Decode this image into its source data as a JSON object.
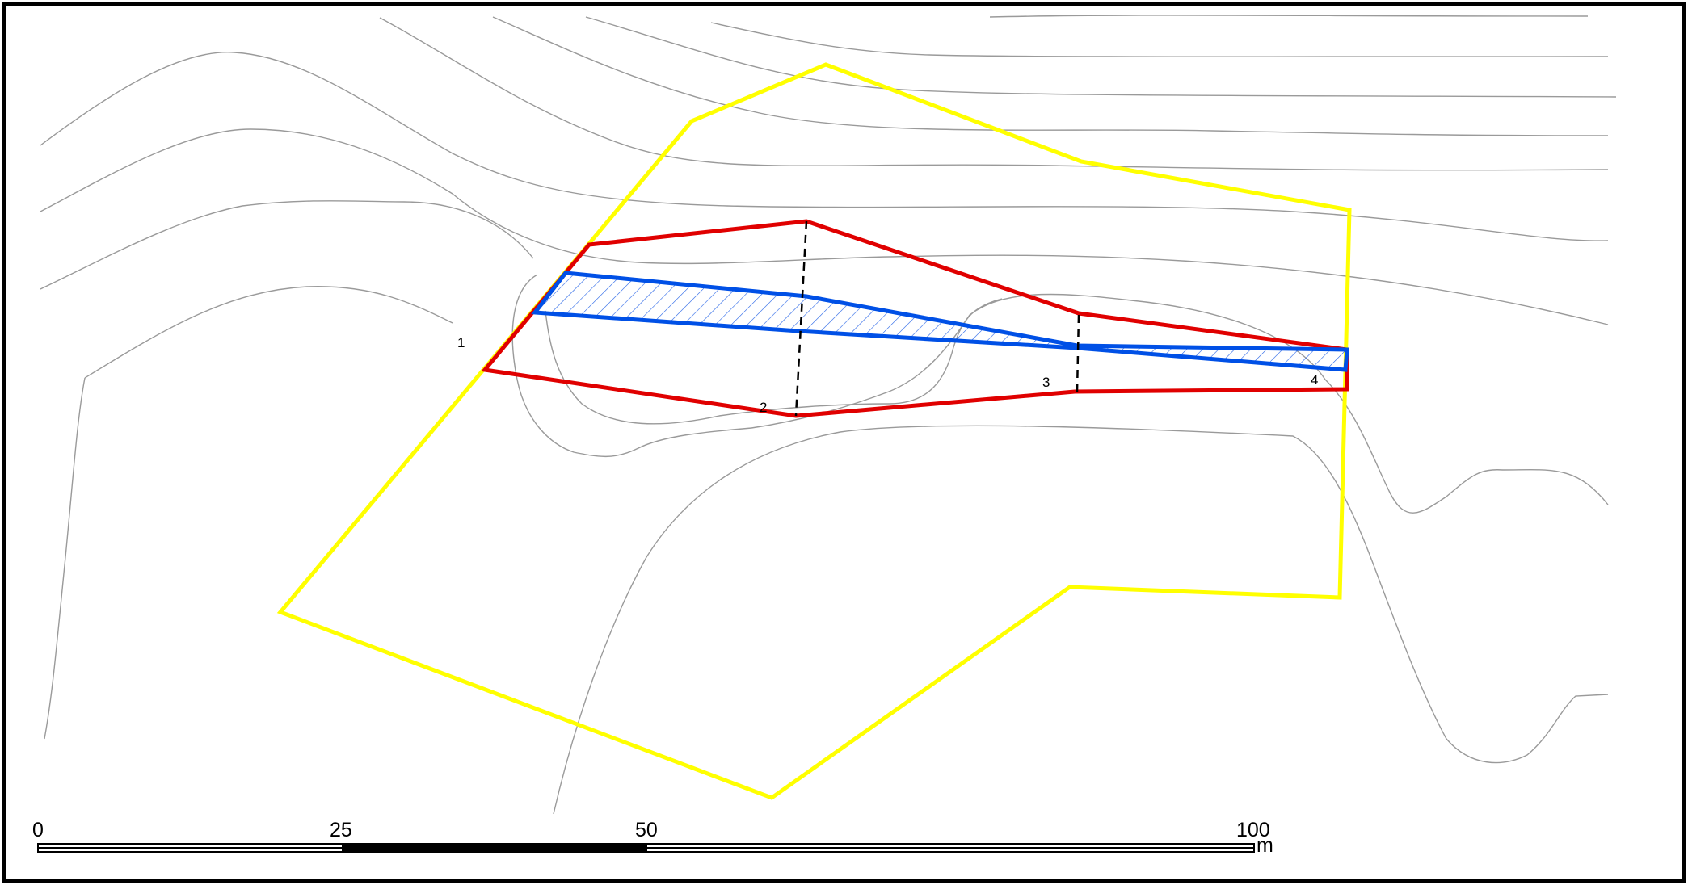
{
  "map": {
    "colors": {
      "frame": "#000000",
      "contours": "#9a9a9a",
      "outer_boundary": "#ffff00",
      "red_polygon": "#e00000",
      "blue_band": "#0050e6",
      "blue_hatch": "#1f5fe6",
      "section_lines": "#000000"
    },
    "section_labels": [
      "1",
      "2",
      "3",
      "4"
    ],
    "scale_bar": {
      "tick_labels": [
        "0",
        "25",
        "50",
        "100"
      ],
      "unit": "m"
    }
  }
}
